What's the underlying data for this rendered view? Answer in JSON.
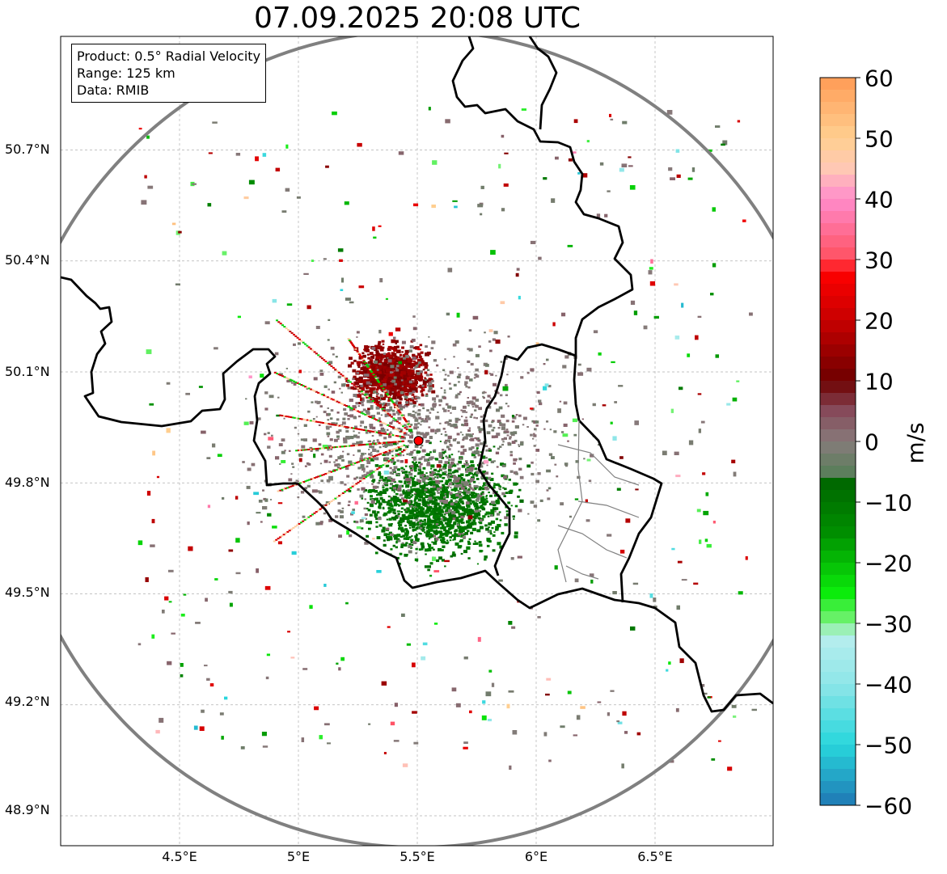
{
  "title": "07.09.2025 20:08 UTC",
  "info_box": {
    "product": "Product: 0.5° Radial Velocity",
    "range": "Range: 125 km",
    "data": "Data: RMIB"
  },
  "latitude_labels": [
    "50.7°N",
    "50.4°N",
    "50.1°N",
    "49.8°N",
    "49.5°N",
    "49.2°N",
    "48.9°N"
  ],
  "longitude_labels": [
    "4.5°E",
    "5°E",
    "5.5°E",
    "6°E",
    "6.5°E"
  ],
  "colorbar": {
    "unit": "m/s",
    "min": -60,
    "max": 60,
    "tick_values": [
      60,
      50,
      40,
      30,
      20,
      10,
      0,
      -10,
      -20,
      -30,
      -40,
      -50,
      -60
    ],
    "tick_labels": [
      "60",
      "50",
      "40",
      "30",
      "20",
      "10",
      "0",
      "−10",
      "−20",
      "−30",
      "−40",
      "−50",
      "−60"
    ],
    "color_stops": [
      {
        "value": -60,
        "color": "#1f77b4"
      },
      {
        "value": -50,
        "color": "#28d6dc"
      },
      {
        "value": -40,
        "color": "#8ee6e8"
      },
      {
        "value": -32,
        "color": "#b8eeee"
      },
      {
        "value": -30,
        "color": "#7df27d"
      },
      {
        "value": -25,
        "color": "#0bec0b"
      },
      {
        "value": -15,
        "color": "#008e00"
      },
      {
        "value": -6,
        "color": "#006400"
      },
      {
        "value": -5,
        "color": "#5c7e5c"
      },
      {
        "value": 0,
        "color": "#877b7b"
      },
      {
        "value": 5,
        "color": "#864a5a"
      },
      {
        "value": 10,
        "color": "#6e0000"
      },
      {
        "value": 20,
        "color": "#c80000"
      },
      {
        "value": 28,
        "color": "#ff0000"
      },
      {
        "value": 30,
        "color": "#ff5060"
      },
      {
        "value": 40,
        "color": "#ff8ccc"
      },
      {
        "value": 45,
        "color": "#ffc8b4"
      },
      {
        "value": 50,
        "color": "#ffcf90"
      },
      {
        "value": 60,
        "color": "#ff9b55"
      }
    ]
  },
  "map": {
    "lon_range": [
      4.0,
      7.0
    ],
    "lat_range": [
      48.8,
      51.0
    ],
    "radar_site": {
      "lon": 5.505,
      "lat": 49.914
    },
    "range_km": 125,
    "colors": {
      "background": "#ffffff",
      "grid": "#b0b0b0",
      "border": "#000000",
      "admin": "#808080",
      "range_ring": "#808080",
      "radar_marker": "#ff0000"
    }
  }
}
